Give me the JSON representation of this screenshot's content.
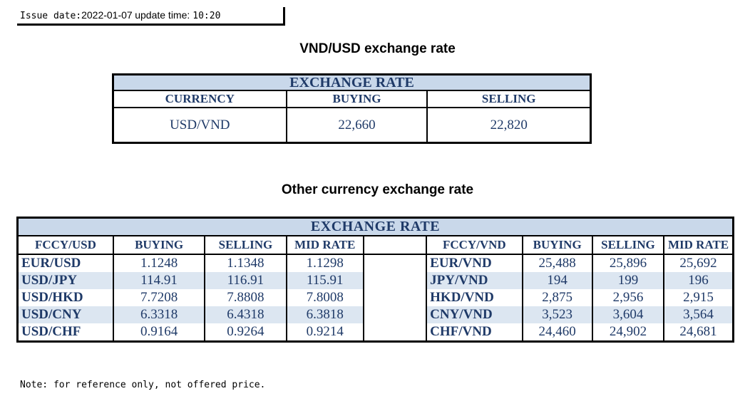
{
  "issue": {
    "label": "Issue date:",
    "date": "2022-01-07",
    "update_label": "update time:",
    "time": "10:20"
  },
  "vnd_usd": {
    "title": "VND/USD exchange rate",
    "band": "EXCHANGE RATE",
    "headers": [
      "CURRENCY",
      "BUYING",
      "SELLING"
    ],
    "row": {
      "currency": "USD/VND",
      "buying": "22,660",
      "selling": "22,820"
    }
  },
  "other": {
    "title": "Other currency exchange rate",
    "band": "EXCHANGE  RATE",
    "headers_left": [
      "FCCY/USD",
      "BUYING",
      "SELLING",
      "MID RATE"
    ],
    "headers_right": [
      "FCCY/VND",
      "BUYING",
      "SELLING",
      "MID RATE"
    ],
    "rows": [
      {
        "pair_usd": "EUR/USD",
        "buy_usd": "1.1248",
        "sell_usd": "1.1348",
        "mid_usd": "1.1298",
        "pair_vnd": "EUR/VND",
        "buy_vnd": "25,488",
        "sell_vnd": "25,896",
        "mid_vnd": "25,692"
      },
      {
        "pair_usd": "USD/JPY",
        "buy_usd": "114.91",
        "sell_usd": "116.91",
        "mid_usd": "115.91",
        "pair_vnd": "JPY/VND",
        "buy_vnd": "194",
        "sell_vnd": "199",
        "mid_vnd": "196"
      },
      {
        "pair_usd": "USD/HKD",
        "buy_usd": "7.7208",
        "sell_usd": "7.8808",
        "mid_usd": "7.8008",
        "pair_vnd": "HKD/VND",
        "buy_vnd": "2,875",
        "sell_vnd": "2,956",
        "mid_vnd": "2,915"
      },
      {
        "pair_usd": "USD/CNY",
        "buy_usd": "6.3318",
        "sell_usd": "6.4318",
        "mid_usd": "6.3818",
        "pair_vnd": "CNY/VND",
        "buy_vnd": "3,523",
        "sell_vnd": "3,604",
        "mid_vnd": "3,564"
      },
      {
        "pair_usd": "USD/CHF",
        "buy_usd": "0.9164",
        "sell_usd": "0.9264",
        "mid_usd": "0.9214",
        "pair_vnd": "CHF/VND",
        "buy_vnd": "24,460",
        "sell_vnd": "24,902",
        "mid_vnd": "24,681"
      }
    ]
  },
  "note": "Note: for reference only, not offered price.",
  "colors": {
    "header_band": "#c9d8ea",
    "text_navy": "#1f3a68",
    "alt_row": "#dce6f1"
  }
}
